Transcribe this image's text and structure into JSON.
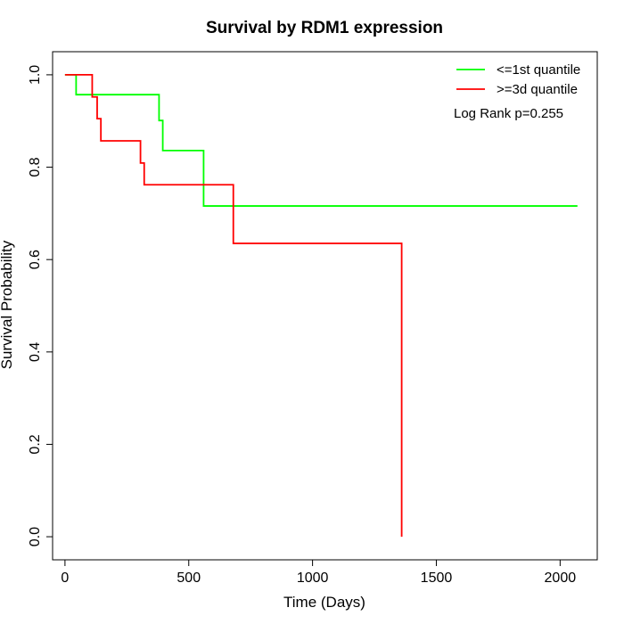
{
  "chart_data": {
    "type": "line",
    "title": "Survival by RDM1 expression",
    "xlabel": "Time (Days)",
    "ylabel": "Survival Probability",
    "xlim": [
      -50,
      2150
    ],
    "ylim": [
      -0.05,
      1.05
    ],
    "xticks": [
      0,
      500,
      1000,
      1500,
      2000
    ],
    "yticks": [
      0.0,
      0.2,
      0.4,
      0.6,
      0.8,
      1.0
    ],
    "xtick_labels": [
      "0",
      "500",
      "1000",
      "1500",
      "2000"
    ],
    "ytick_labels": [
      "0.0",
      "0.2",
      "0.4",
      "0.6",
      "0.8",
      "1.0"
    ],
    "grid": false,
    "legend_position": "top-right",
    "annotation": "Log Rank p=0.255",
    "series": [
      {
        "name": "<=1st quantile",
        "color": "#00ff00",
        "step_points": [
          [
            0,
            1.0
          ],
          [
            45,
            0.957
          ],
          [
            380,
            0.901
          ],
          [
            395,
            0.836
          ],
          [
            560,
            0.716
          ],
          [
            2070,
            0.716
          ]
        ]
      },
      {
        "name": ">=3d quantile",
        "color": "#ff0000",
        "step_points": [
          [
            0,
            1.0
          ],
          [
            110,
            0.952
          ],
          [
            130,
            0.905
          ],
          [
            145,
            0.857
          ],
          [
            305,
            0.809
          ],
          [
            320,
            0.762
          ],
          [
            680,
            0.635
          ],
          [
            1360,
            0.0
          ]
        ]
      }
    ]
  }
}
